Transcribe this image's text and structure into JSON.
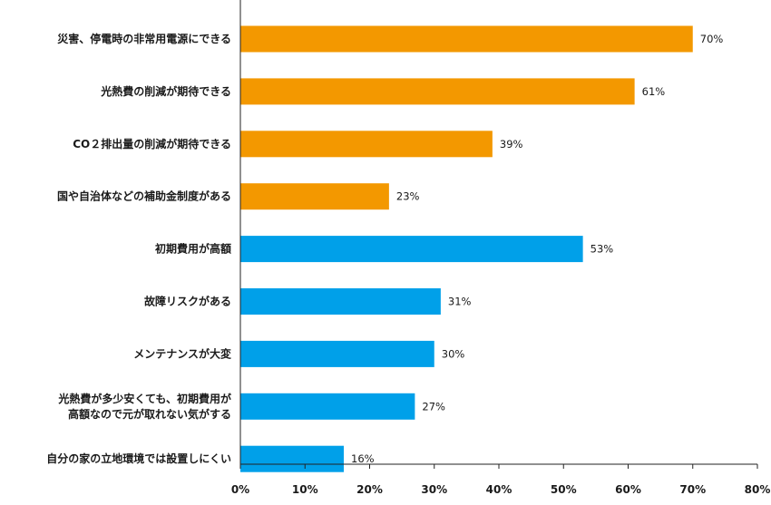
{
  "chart_data": {
    "type": "bar",
    "orientation": "horizontal",
    "title": "",
    "xlabel": "",
    "ylabel": "",
    "xlim": [
      0,
      80
    ],
    "x_ticks": [
      "0%",
      "10%",
      "20%",
      "30%",
      "40%",
      "50%",
      "60%",
      "70%",
      "80%"
    ],
    "grid": false,
    "categories": [
      [
        "災害、停電時の非常用電源にできる"
      ],
      [
        "光熱費の削減が期待できる"
      ],
      [
        "CO２排出量の削減が期待できる"
      ],
      [
        "国や自治体などの補助金制度がある"
      ],
      [
        "初期費用が高額"
      ],
      [
        "故障リスクがある"
      ],
      [
        "メンテナンスが大変"
      ],
      [
        "光熱費が多少安くても、初期費用が",
        "高額なので元が取れない気がする"
      ],
      [
        "自分の家の立地環境では設置しにくい"
      ]
    ],
    "values": [
      70,
      61,
      39,
      23,
      53,
      31,
      30,
      27,
      16
    ],
    "value_labels": [
      "70%",
      "61%",
      "39%",
      "23%",
      "53%",
      "31%",
      "30%",
      "27%",
      "16%"
    ],
    "groups": [
      "merit",
      "merit",
      "merit",
      "merit",
      "demerit",
      "demerit",
      "demerit",
      "demerit",
      "demerit"
    ],
    "colors": {
      "merit": "#F39800",
      "demerit": "#00A0E9"
    }
  }
}
